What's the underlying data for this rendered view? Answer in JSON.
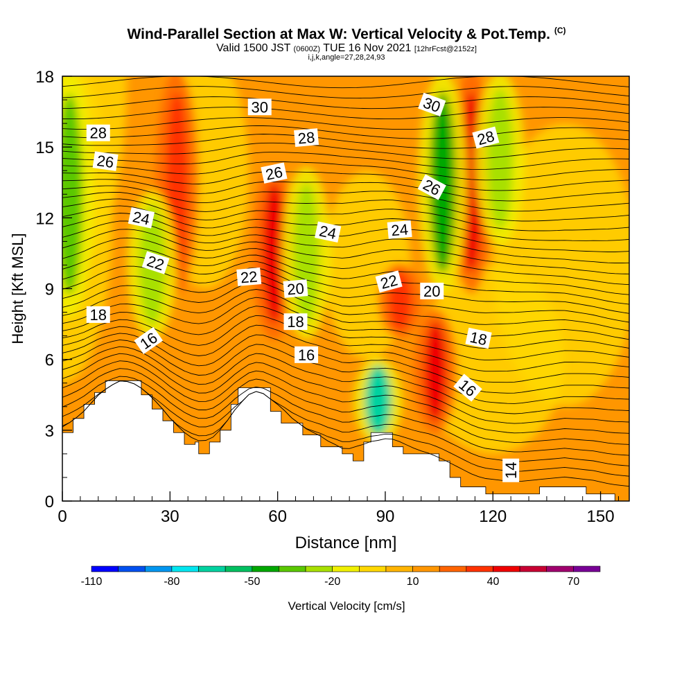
{
  "title_main": "Wind-Parallel Section at Max W: Vertical Velocity & Pot.Temp.",
  "title_mark": "(C)",
  "subtitle_valid": "Valid 1500 JST",
  "subtitle_utc": "(0600Z)",
  "subtitle_date": "TUE 16 Nov 2021",
  "subtitle_fcst": "[12hrFcst@2152z]",
  "subtitle_indices": "i,j,k,angle=27,28,24,93",
  "chart_data": {
    "type": "heatmap",
    "xlabel": "Distance [nm]",
    "ylabel": "Height [Kft MSL]",
    "xlim": [
      0,
      158
    ],
    "ylim": [
      0,
      18
    ],
    "x_ticks": [
      0,
      30,
      60,
      90,
      120,
      150
    ],
    "y_ticks": [
      0,
      3,
      6,
      9,
      12,
      15,
      18
    ],
    "colorbar": {
      "label": "Vertical Velocity [cm/s]",
      "tick_labels": [
        "-110",
        "-80",
        "-50",
        "-20",
        "10",
        "40",
        "70"
      ],
      "tick_values": [
        -110,
        -80,
        -50,
        -20,
        10,
        40,
        70
      ],
      "min": -110,
      "max": 80,
      "step": 10,
      "colors": [
        "#0000ff",
        "#0050f0",
        "#0096f0",
        "#00e6f0",
        "#00d2a0",
        "#00c060",
        "#00a800",
        "#5ac800",
        "#a8e000",
        "#f0f000",
        "#ffd800",
        "#ffb400",
        "#ff9600",
        "#ff6400",
        "#ff3200",
        "#f00000",
        "#c80032",
        "#a0006e",
        "#780096"
      ]
    },
    "vertical_velocity_features": [
      {
        "kind": "updraft",
        "x": 32,
        "y_range": [
          9,
          18
        ],
        "value": 35
      },
      {
        "kind": "updraft",
        "x": 59,
        "y_range": [
          7,
          14
        ],
        "value": 45
      },
      {
        "kind": "updraft",
        "x": 94,
        "y_range": [
          7,
          10
        ],
        "value": 35
      },
      {
        "kind": "updraft",
        "x": 104,
        "y_range": [
          3,
          8
        ],
        "value": 45
      },
      {
        "kind": "updraft",
        "x": 114,
        "y_range": [
          9,
          18
        ],
        "value": 40
      },
      {
        "kind": "downdraft",
        "x": 2,
        "y_range": [
          8,
          18
        ],
        "value": -40
      },
      {
        "kind": "downdraft",
        "x": 25,
        "y_range": [
          7,
          13
        ],
        "value": -30
      },
      {
        "kind": "downdraft",
        "x": 68,
        "y_range": [
          7,
          14
        ],
        "value": -25
      },
      {
        "kind": "downdraft",
        "x": 88,
        "y_range": [
          2.5,
          6
        ],
        "value": -70
      },
      {
        "kind": "downdraft",
        "x": 106,
        "y_range": [
          9,
          18
        ],
        "value": -45
      },
      {
        "kind": "downdraft",
        "x": 122,
        "y_range": [
          11,
          18
        ],
        "value": -25
      }
    ],
    "potential_temperature_labels": [
      {
        "text": "30",
        "x": 55,
        "y": 16.7,
        "angle": 0
      },
      {
        "text": "30",
        "x": 103,
        "y": 16.8,
        "angle": 20
      },
      {
        "text": "28",
        "x": 10,
        "y": 15.6,
        "angle": 0
      },
      {
        "text": "28",
        "x": 68,
        "y": 15.4,
        "angle": -5
      },
      {
        "text": "28",
        "x": 118,
        "y": 15.4,
        "angle": -15
      },
      {
        "text": "26",
        "x": 12,
        "y": 14.4,
        "angle": 8
      },
      {
        "text": "26",
        "x": 59,
        "y": 13.9,
        "angle": -12
      },
      {
        "text": "26",
        "x": 103,
        "y": 13.3,
        "angle": 28
      },
      {
        "text": "24",
        "x": 22,
        "y": 12.0,
        "angle": 12
      },
      {
        "text": "24",
        "x": 74,
        "y": 11.4,
        "angle": 12
      },
      {
        "text": "24",
        "x": 94,
        "y": 11.5,
        "angle": -5
      },
      {
        "text": "22",
        "x": 26,
        "y": 10.1,
        "angle": 18
      },
      {
        "text": "22",
        "x": 52,
        "y": 9.5,
        "angle": -5
      },
      {
        "text": "22",
        "x": 91,
        "y": 9.3,
        "angle": -15
      },
      {
        "text": "20",
        "x": 65,
        "y": 9.0,
        "angle": -5
      },
      {
        "text": "20",
        "x": 103,
        "y": 8.9,
        "angle": 0
      },
      {
        "text": "18",
        "x": 10,
        "y": 7.9,
        "angle": 0
      },
      {
        "text": "18",
        "x": 65,
        "y": 7.6,
        "angle": 0
      },
      {
        "text": "18",
        "x": 116,
        "y": 6.9,
        "angle": 12
      },
      {
        "text": "16",
        "x": 24,
        "y": 6.8,
        "angle": -35
      },
      {
        "text": "16",
        "x": 68,
        "y": 6.2,
        "angle": 0
      },
      {
        "text": "16",
        "x": 113,
        "y": 4.8,
        "angle": 40
      },
      {
        "text": "14",
        "x": 125,
        "y": 1.3,
        "angle": -90
      }
    ],
    "terrain_profile": [
      [
        0,
        0
      ],
      [
        0,
        2.9
      ],
      [
        3,
        2.9
      ],
      [
        3,
        3.5
      ],
      [
        6,
        3.5
      ],
      [
        6,
        4.1
      ],
      [
        9,
        4.1
      ],
      [
        9,
        4.6
      ],
      [
        12,
        4.6
      ],
      [
        12,
        5.1
      ],
      [
        22,
        5.1
      ],
      [
        22,
        4.5
      ],
      [
        25,
        4.5
      ],
      [
        25,
        3.9
      ],
      [
        28,
        3.9
      ],
      [
        28,
        3.4
      ],
      [
        31,
        3.4
      ],
      [
        31,
        2.9
      ],
      [
        34,
        2.9
      ],
      [
        34,
        2.4
      ],
      [
        37,
        2.4
      ],
      [
        37,
        2.5
      ],
      [
        38,
        2.5
      ],
      [
        38,
        2.0
      ],
      [
        41,
        2.0
      ],
      [
        41,
        2.5
      ],
      [
        44,
        2.5
      ],
      [
        44,
        3.0
      ],
      [
        47,
        3.0
      ],
      [
        47,
        4.1
      ],
      [
        49,
        4.1
      ],
      [
        49,
        4.8
      ],
      [
        58,
        4.8
      ],
      [
        58,
        3.8
      ],
      [
        61,
        3.8
      ],
      [
        61,
        3.3
      ],
      [
        67,
        3.3
      ],
      [
        67,
        2.8
      ],
      [
        72,
        2.8
      ],
      [
        72,
        2.3
      ],
      [
        78,
        2.3
      ],
      [
        78,
        2.0
      ],
      [
        81,
        2.0
      ],
      [
        81,
        1.7
      ],
      [
        84,
        1.7
      ],
      [
        84,
        2.5
      ],
      [
        86,
        2.5
      ],
      [
        86,
        2.9
      ],
      [
        92,
        2.9
      ],
      [
        92,
        2.3
      ],
      [
        95,
        2.3
      ],
      [
        95,
        2.0
      ],
      [
        102,
        2.0
      ],
      [
        102,
        2.0
      ],
      [
        105,
        2.0
      ],
      [
        105,
        1.7
      ],
      [
        108,
        1.7
      ],
      [
        108,
        1.0
      ],
      [
        111,
        1.0
      ],
      [
        111,
        0.6
      ],
      [
        118,
        0.6
      ],
      [
        118,
        0.3
      ],
      [
        133,
        0.3
      ],
      [
        133,
        0.6
      ],
      [
        146,
        0.6
      ],
      [
        146,
        0.3
      ],
      [
        154,
        0.3
      ],
      [
        154,
        0
      ],
      [
        158,
        0
      ]
    ]
  }
}
